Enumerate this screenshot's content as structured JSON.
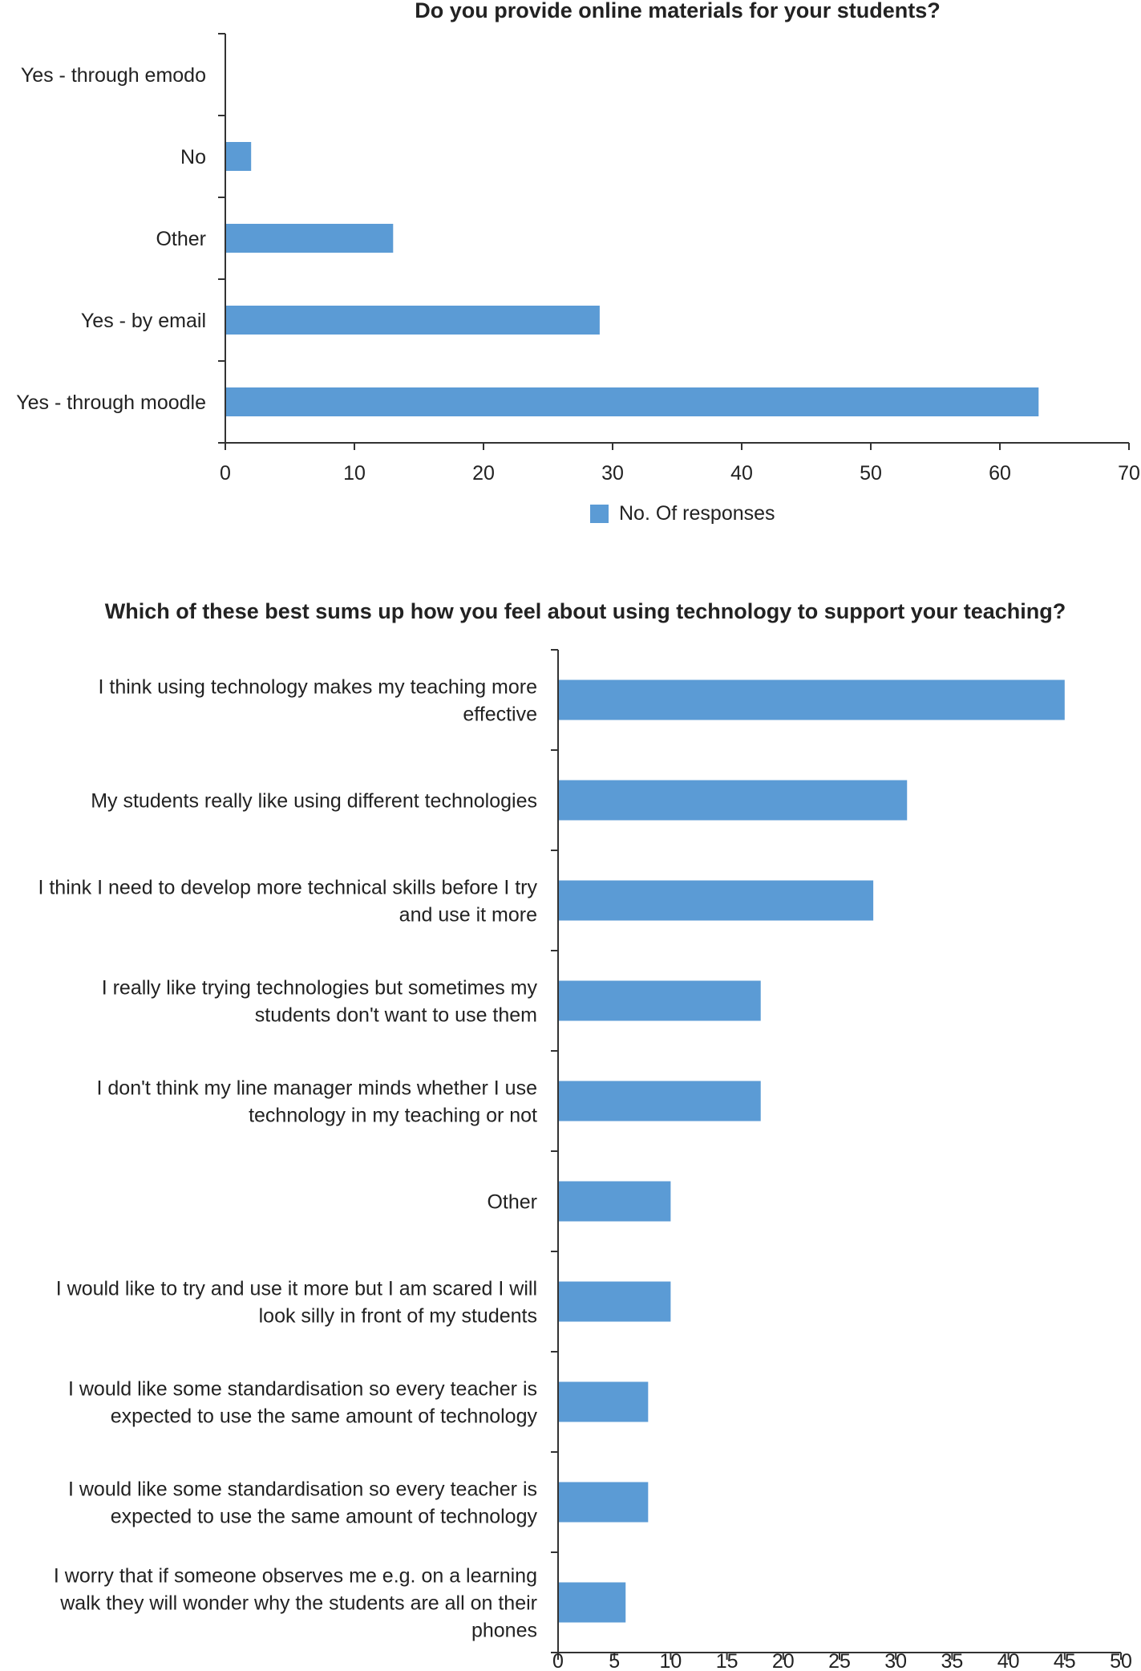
{
  "chart_data": [
    {
      "type": "bar",
      "orientation": "horizontal",
      "title": "Do you provide online materials for your students?",
      "categories": [
        "Yes - through emodo",
        "No",
        "Other",
        "Yes - by email",
        "Yes - through moodle"
      ],
      "series": [
        {
          "name": "No. Of responses",
          "values": [
            0,
            2,
            13,
            29,
            63
          ]
        }
      ],
      "xlim": [
        0,
        70
      ],
      "xticks": [
        0,
        10,
        20,
        30,
        40,
        50,
        60,
        70
      ],
      "grid": false,
      "legend": "bottom",
      "bar_color": "#5b9bd5"
    },
    {
      "type": "bar",
      "orientation": "horizontal",
      "title": "Which of these best sums up how you feel about using technology to support your teaching?",
      "categories": [
        [
          "I think using technology makes my teaching more",
          "effective"
        ],
        [
          "My students really like using different technologies"
        ],
        [
          "I think I need to develop more technical skills before I try",
          "and use it more"
        ],
        [
          "I really like trying technologies but sometimes my",
          "students don't want to use them"
        ],
        [
          "I don't think my line manager minds whether I use",
          "technology in my teaching or not"
        ],
        [
          "Other"
        ],
        [
          "I would like to try and use it more but I am scared I will",
          "look silly in front of my students"
        ],
        [
          "I would like some standardisation so every teacher is",
          "expected to use the same amount of technology"
        ],
        [
          "I would like some standardisation so every teacher is",
          "expected to use the same amount of technology"
        ],
        [
          "I worry that if someone observes me e.g. on a learning",
          "walk they will wonder why the students are all on their",
          "phones"
        ]
      ],
      "series": [
        {
          "values": [
            45,
            31,
            28,
            18,
            18,
            10,
            10,
            8,
            8,
            6
          ]
        }
      ],
      "xlim": [
        0,
        50
      ],
      "xticks": [
        0,
        5,
        10,
        15,
        20,
        25,
        30,
        35,
        40,
        45,
        50
      ],
      "grid": false,
      "bar_color": "#5b9bd5"
    }
  ]
}
